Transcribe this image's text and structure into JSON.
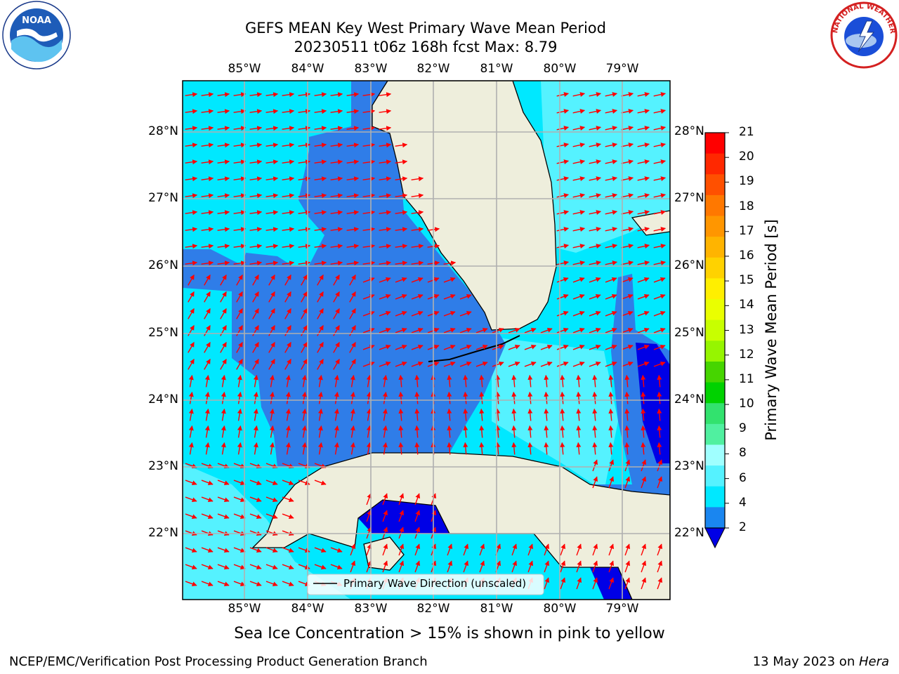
{
  "title": {
    "line1": "GEFS MEAN Key West Primary Wave Mean Period",
    "line2": "20230511 t06z 168h fcst   Max: 8.79"
  },
  "logos": {
    "left": {
      "icon": "noaa-logo",
      "text": "NOAA"
    },
    "right": {
      "icon": "nws-logo",
      "text": "NATIONAL WEATHER SERVICE"
    }
  },
  "map": {
    "lon_labels": [
      "85°W",
      "84°W",
      "83°W",
      "82°W",
      "81°W",
      "80°W",
      "79°W"
    ],
    "lat_labels": [
      "28°N",
      "27°N",
      "26°N",
      "25°N",
      "24°N",
      "23°N",
      "22°N"
    ],
    "legend": "Primary Wave Direction (unscaled)",
    "colors": {
      "water_blue": "#2f7de8",
      "water_cyan": "#00e8ff",
      "water_light": "#55f2ff",
      "water_dark": "#0000e6",
      "land": "#eeeedc",
      "grid": "#b0b0b0",
      "arrow": "#ff0000"
    }
  },
  "colorbar": {
    "label": "Primary Wave Mean Period [s]",
    "ticks": [
      "21",
      "20",
      "19",
      "18",
      "17",
      "16",
      "15",
      "14",
      "13",
      "12",
      "11",
      "10",
      "9",
      "8",
      "6",
      "4",
      "2"
    ],
    "colors": [
      "#ff0000",
      "#ff2800",
      "#ff5000",
      "#ff7800",
      "#ff9600",
      "#ffb400",
      "#ffd200",
      "#ffef00",
      "#eaff00",
      "#c8ff00",
      "#96f500",
      "#46d500",
      "#00d200",
      "#32e26e",
      "#50f0a0",
      "#a0ffff",
      "#55f2ff",
      "#00e8ff",
      "#1a86f0",
      "#0000e6"
    ]
  },
  "bottom_note": "Sea Ice Concentration > 15% is shown in pink to yellow",
  "footer": {
    "left": "NCEP/EMC/Verification Post Processing Product Generation Branch",
    "right_prefix": "13 May 2023 on ",
    "right_host": "Hera"
  }
}
